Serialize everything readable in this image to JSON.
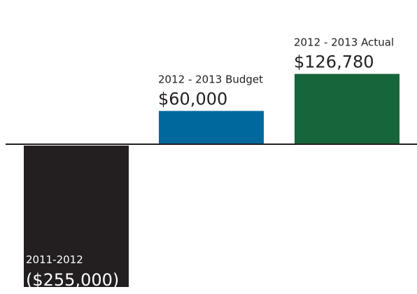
{
  "chart_data": {
    "type": "bar",
    "categories": [
      "2011-2012",
      "2012 - 2013 Budget",
      "2012 - 2013 Actual"
    ],
    "values": [
      -255000,
      60000,
      126780
    ],
    "value_labels": [
      "($255,000)",
      "$60,000",
      "$126,780"
    ],
    "colors": [
      "#231f20",
      "#00689d",
      "#17653a"
    ],
    "title": "",
    "xlabel": "",
    "ylabel": "",
    "ylim": [
      -255000,
      126780
    ],
    "grid": false,
    "legend": "none"
  }
}
